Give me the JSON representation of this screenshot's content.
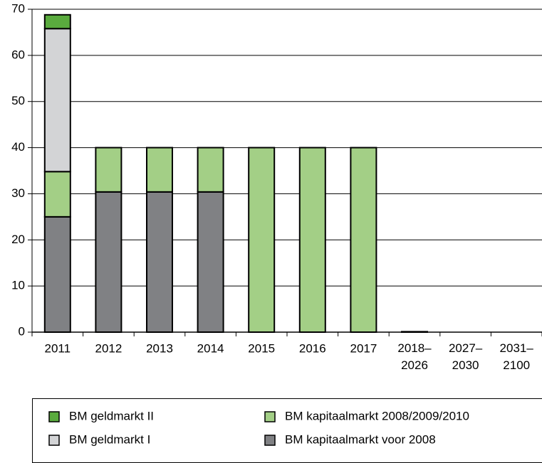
{
  "chart_data": {
    "type": "stacked_bar",
    "categories": [
      "2011",
      "2012",
      "2013",
      "2014",
      "2015",
      "2016",
      "2017",
      "2018–2026",
      "2027–2030",
      "2031–2100"
    ],
    "series": [
      {
        "name": "BM kapitaalmarkt voor 2008",
        "color": "#808184",
        "values": [
          25,
          30.4,
          30.4,
          30.4,
          0,
          0,
          0,
          0,
          0,
          0
        ]
      },
      {
        "name": "BM kapitaalmarkt 2008/2009/2010",
        "color": "#a3cf86",
        "values": [
          9.8,
          9.6,
          9.6,
          9.6,
          40,
          40,
          40,
          0.1,
          0,
          0
        ]
      },
      {
        "name": "BM geldmarkt I",
        "color": "#d3d4d6",
        "values": [
          31,
          0,
          0,
          0,
          0,
          0,
          0,
          0,
          0,
          0
        ]
      },
      {
        "name": "BM geldmarkt II",
        "color": "#5aab3e",
        "values": [
          3,
          0,
          0,
          0,
          0,
          0,
          0,
          0,
          0,
          0
        ]
      }
    ],
    "ylim": [
      0,
      70
    ],
    "yticks": [
      0,
      10,
      20,
      30,
      40,
      50,
      60,
      70
    ],
    "grid": true
  }
}
